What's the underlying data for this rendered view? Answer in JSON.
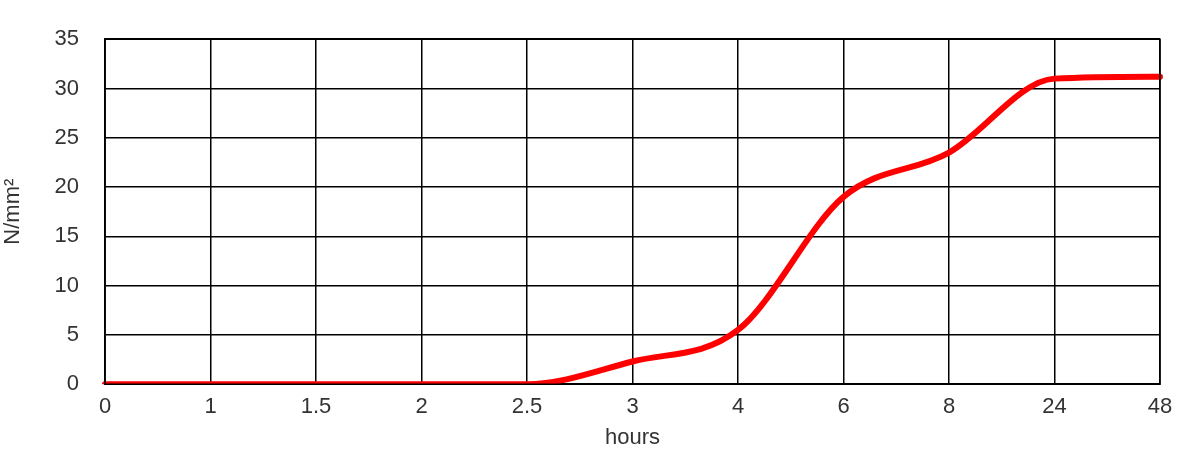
{
  "chart_data": {
    "type": "line",
    "xlabel": "hours",
    "ylabel": "N/mm²",
    "categories": [
      "0",
      "1",
      "1.5",
      "2",
      "2.5",
      "3",
      "4",
      "6",
      "8",
      "24",
      "48"
    ],
    "series": [
      {
        "color": "#ff0000",
        "values": [
          0,
          0,
          0,
          0,
          0,
          2.3,
          5.5,
          19,
          23.5,
          31,
          31.2
        ]
      }
    ],
    "ylim": [
      0,
      35
    ],
    "yticks": [
      0,
      5,
      10,
      15,
      20,
      25,
      30,
      35
    ],
    "grid": true,
    "marker": "none"
  }
}
